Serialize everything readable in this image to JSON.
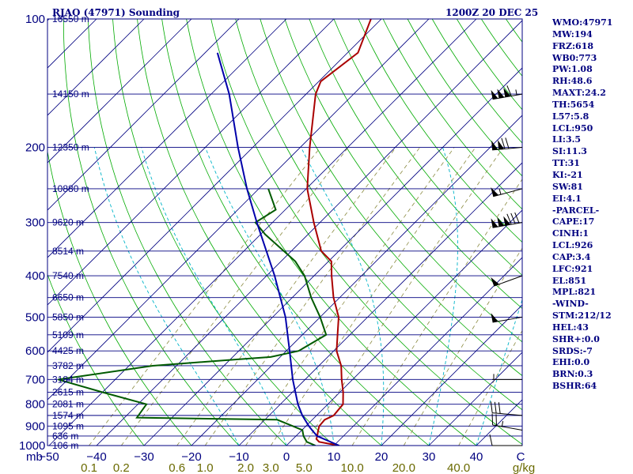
{
  "chart_data": {
    "type": "line",
    "title": "RJAO (47971) Sounding",
    "subtitle": "1200Z 20 DEC 25",
    "ylabel": "mb",
    "xlabel": "C",
    "mixing_ratio_unit": "g/kg",
    "y_scale": "log-pressure",
    "ylim": [
      1000,
      100
    ],
    "xlim": [
      -50,
      50
    ],
    "pressure_ticks": [
      100,
      200,
      300,
      400,
      500,
      600,
      700,
      800,
      900,
      1000
    ],
    "temperature_ticks": [
      -50,
      -40,
      -30,
      -20,
      -10,
      0,
      10,
      20,
      30,
      40
    ],
    "height_labels": [
      {
        "p": 1000,
        "label": "106 m"
      },
      {
        "p": 950,
        "label": "636 m"
      },
      {
        "p": 900,
        "label": "1095 m"
      },
      {
        "p": 850,
        "label": "1574 m"
      },
      {
        "p": 800,
        "label": "2081 m"
      },
      {
        "p": 750,
        "label": "2615 m"
      },
      {
        "p": 700,
        "label": "3184 m"
      },
      {
        "p": 650,
        "label": "3782 m"
      },
      {
        "p": 600,
        "label": "4425 m"
      },
      {
        "p": 550,
        "label": "5109 m"
      },
      {
        "p": 500,
        "label": "5850 m"
      },
      {
        "p": 450,
        "label": "6650 m"
      },
      {
        "p": 400,
        "label": "7540 m"
      },
      {
        "p": 350,
        "label": "8514 m"
      },
      {
        "p": 300,
        "label": "9620 m"
      },
      {
        "p": 250,
        "label": "10880 m"
      },
      {
        "p": 200,
        "label": "12350 m"
      },
      {
        "p": 150,
        "label": "14150 m"
      },
      {
        "p": 100,
        "label": "16550 m"
      }
    ],
    "mixing_ratio_labels": [
      "0.1",
      "0.2",
      "0.6",
      "1.0",
      "2.0",
      "3.0",
      "5.0",
      "10.0",
      "20.0",
      "40.0"
    ],
    "series": [
      {
        "key": "temperature",
        "color": "#aa0000",
        "points": [
          [
            1000,
            11.1
          ],
          [
            990,
            8.5
          ],
          [
            980,
            6.1
          ],
          [
            965,
            4.9
          ],
          [
            950,
            4.5
          ],
          [
            925,
            3.6
          ],
          [
            900,
            2.8
          ],
          [
            870,
            2.6
          ],
          [
            850,
            3.6
          ],
          [
            800,
            3.2
          ],
          [
            750,
            0.7
          ],
          [
            700,
            -2.3
          ],
          [
            650,
            -5.3
          ],
          [
            600,
            -9.4
          ],
          [
            550,
            -12.6
          ],
          [
            500,
            -16.1
          ],
          [
            450,
            -21.3
          ],
          [
            400,
            -26.3
          ],
          [
            370,
            -29.4
          ],
          [
            350,
            -33.7
          ],
          [
            300,
            -41.3
          ],
          [
            250,
            -49.8
          ],
          [
            200,
            -58.0
          ],
          [
            150,
            -68.0
          ],
          [
            140,
            -69.6
          ],
          [
            120,
            -67.8
          ],
          [
            100,
            -72.2
          ]
        ]
      },
      {
        "key": "dewpoint",
        "color": "#005a00",
        "points": [
          [
            1000,
            6.1
          ],
          [
            980,
            3.5
          ],
          [
            950,
            1.6
          ],
          [
            920,
            0.1
          ],
          [
            900,
            -2.8
          ],
          [
            870,
            -7.4
          ],
          [
            860,
            -37.4
          ],
          [
            800,
            -38.2
          ],
          [
            750,
            -50.0
          ],
          [
            700,
            -62.0
          ],
          [
            650,
            -45.0
          ],
          [
            630,
            -30.0
          ],
          [
            620,
            -22.0
          ],
          [
            600,
            -17.4
          ],
          [
            550,
            -15.0
          ],
          [
            500,
            -20.0
          ],
          [
            450,
            -26.0
          ],
          [
            400,
            -32.0
          ],
          [
            370,
            -37.0
          ],
          [
            320,
            -49.0
          ],
          [
            300,
            -53.6
          ],
          [
            280,
            -52.0
          ],
          [
            250,
            -58.0
          ]
        ]
      },
      {
        "key": "parcel",
        "color": "#0000aa",
        "points": [
          [
            1000,
            11.1
          ],
          [
            950,
            4.5
          ],
          [
            926,
            2.6
          ],
          [
            900,
            0.6
          ],
          [
            850,
            -3.0
          ],
          [
            800,
            -6.3
          ],
          [
            700,
            -12.6
          ],
          [
            600,
            -19.3
          ],
          [
            500,
            -27.3
          ],
          [
            400,
            -38.3
          ],
          [
            300,
            -53.3
          ],
          [
            250,
            -62.5
          ],
          [
            200,
            -73.1
          ],
          [
            150,
            -86.2
          ],
          [
            120,
            -97.4
          ]
        ]
      }
    ],
    "wind_barbs": [
      {
        "p": 1000,
        "dir": 270,
        "kt": 10
      },
      {
        "p": 920,
        "dir": 280,
        "kt": 25
      },
      {
        "p": 850,
        "dir": 275,
        "kt": 30
      },
      {
        "p": 700,
        "dir": 270,
        "kt": 5
      },
      {
        "p": 500,
        "dir": 260,
        "kt": 50
      },
      {
        "p": 400,
        "dir": 250,
        "kt": 50
      },
      {
        "p": 300,
        "dir": 260,
        "kt": 180
      },
      {
        "p": 250,
        "dir": 255,
        "kt": 55
      },
      {
        "p": 200,
        "dir": 265,
        "kt": 120
      },
      {
        "p": 150,
        "dir": 260,
        "kt": 165
      }
    ]
  },
  "indices": [
    "WMO:47971",
    "MW:194",
    "FRZ:618",
    "WB0:773",
    "PW:1.08",
    "RH:48.6",
    "MAXT:24.2",
    "TH:5654",
    "L57:5.8",
    "LCL:950",
    "LI:3.5",
    "SI:11.3",
    "TT:31",
    "KI:-21",
    "SW:81",
    "EI:4.1",
    "-PARCEL-",
    "CAPE:17",
    "CINH:1",
    "LCL:926",
    "CAP:3.4",
    "LFC:921",
    "EL:851",
    "MPL:821",
    "-WIND-",
    "STM:212/12",
    "HEL:43",
    "SHR+:0.0",
    "SRDS:-7",
    "EHI:0.0",
    "BRN:0.3",
    "BSHR:64"
  ],
  "colors": {
    "frame": "#000080",
    "isobar": "#000080",
    "isotherm": "#000080",
    "dry_adiabat": "#00aa00",
    "moist_adiabat": "#00b4c8",
    "mixing_ratio": "#8a8a40",
    "mixing_label": "#6a6a00"
  }
}
